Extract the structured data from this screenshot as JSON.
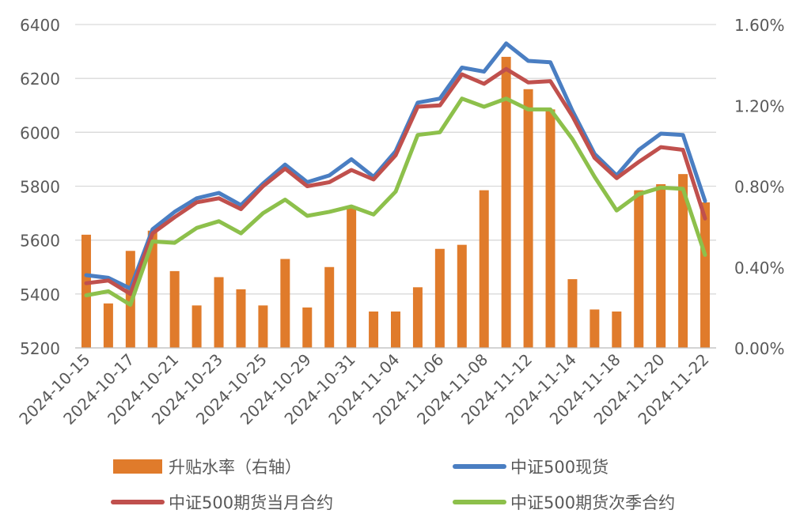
{
  "chart_data": {
    "type": "bar+line",
    "categories": [
      "2024-10-15",
      "2024-10-16",
      "2024-10-17",
      "2024-10-18",
      "2024-10-21",
      "2024-10-22",
      "2024-10-23",
      "2024-10-24",
      "2024-10-25",
      "2024-10-28",
      "2024-10-29",
      "2024-10-30",
      "2024-10-31",
      "2024-11-01",
      "2024-11-04",
      "2024-11-05",
      "2024-11-06",
      "2024-11-07",
      "2024-11-08",
      "2024-11-11",
      "2024-11-12",
      "2024-11-13",
      "2024-11-14",
      "2024-11-15",
      "2024-11-18",
      "2024-11-19",
      "2024-11-20",
      "2024-11-21",
      "2024-11-22"
    ],
    "x_tick_labels": [
      "2024-10-15",
      "2024-10-17",
      "2024-10-21",
      "2024-10-23",
      "2024-10-25",
      "2024-10-29",
      "2024-10-31",
      "2024-11-04",
      "2024-11-06",
      "2024-11-08",
      "2024-11-12",
      "2024-11-14",
      "2024-11-18",
      "2024-11-20",
      "2024-11-22"
    ],
    "y_left": {
      "min": 5200,
      "max": 6400,
      "ticks": [
        "5200",
        "5400",
        "5600",
        "5800",
        "6000",
        "6200",
        "6400"
      ]
    },
    "y_right": {
      "min": 0,
      "max": 1.6,
      "ticks": [
        "0.00%",
        "0.40%",
        "0.80%",
        "1.20%",
        "1.60%"
      ]
    },
    "grid": true,
    "legend_position": "bottom",
    "series": [
      {
        "name": "升贴水率（右轴）",
        "type": "bar",
        "axis": "right",
        "color": "#E07B2B",
        "values": [
          0.56,
          0.22,
          0.48,
          0.58,
          0.38,
          0.21,
          0.35,
          0.29,
          0.21,
          0.44,
          0.2,
          0.4,
          0.7,
          0.18,
          0.18,
          0.3,
          0.49,
          0.51,
          0.78,
          1.44,
          1.28,
          1.18,
          0.34,
          0.19,
          0.18,
          0.78,
          0.81,
          0.86,
          0.72
        ]
      },
      {
        "name": "中证500现货",
        "type": "line",
        "axis": "left",
        "color": "#4A7EC2",
        "values": [
          5470,
          5460,
          5420,
          5640,
          5705,
          5755,
          5775,
          5730,
          5810,
          5880,
          5815,
          5840,
          5900,
          5835,
          5930,
          6110,
          6125,
          6240,
          6225,
          6330,
          6265,
          6260,
          6080,
          5920,
          5840,
          5935,
          5995,
          5990,
          5745
        ]
      },
      {
        "name": "中证500期货当月合约",
        "type": "line",
        "axis": "left",
        "color": "#C0504D",
        "values": [
          5440,
          5450,
          5400,
          5625,
          5685,
          5740,
          5755,
          5715,
          5800,
          5865,
          5800,
          5815,
          5860,
          5825,
          5915,
          6095,
          6100,
          6215,
          6180,
          6235,
          6185,
          6190,
          6060,
          5905,
          5830,
          5890,
          5945,
          5935,
          5680
        ]
      },
      {
        "name": "中证500期货次季合约",
        "type": "line",
        "axis": "left",
        "color": "#8DC04B",
        "values": [
          5395,
          5410,
          5360,
          5595,
          5590,
          5645,
          5670,
          5625,
          5700,
          5750,
          5690,
          5705,
          5725,
          5695,
          5780,
          5990,
          6000,
          6125,
          6095,
          6125,
          6085,
          6085,
          5975,
          5835,
          5710,
          5770,
          5795,
          5790,
          5545
        ]
      }
    ]
  }
}
